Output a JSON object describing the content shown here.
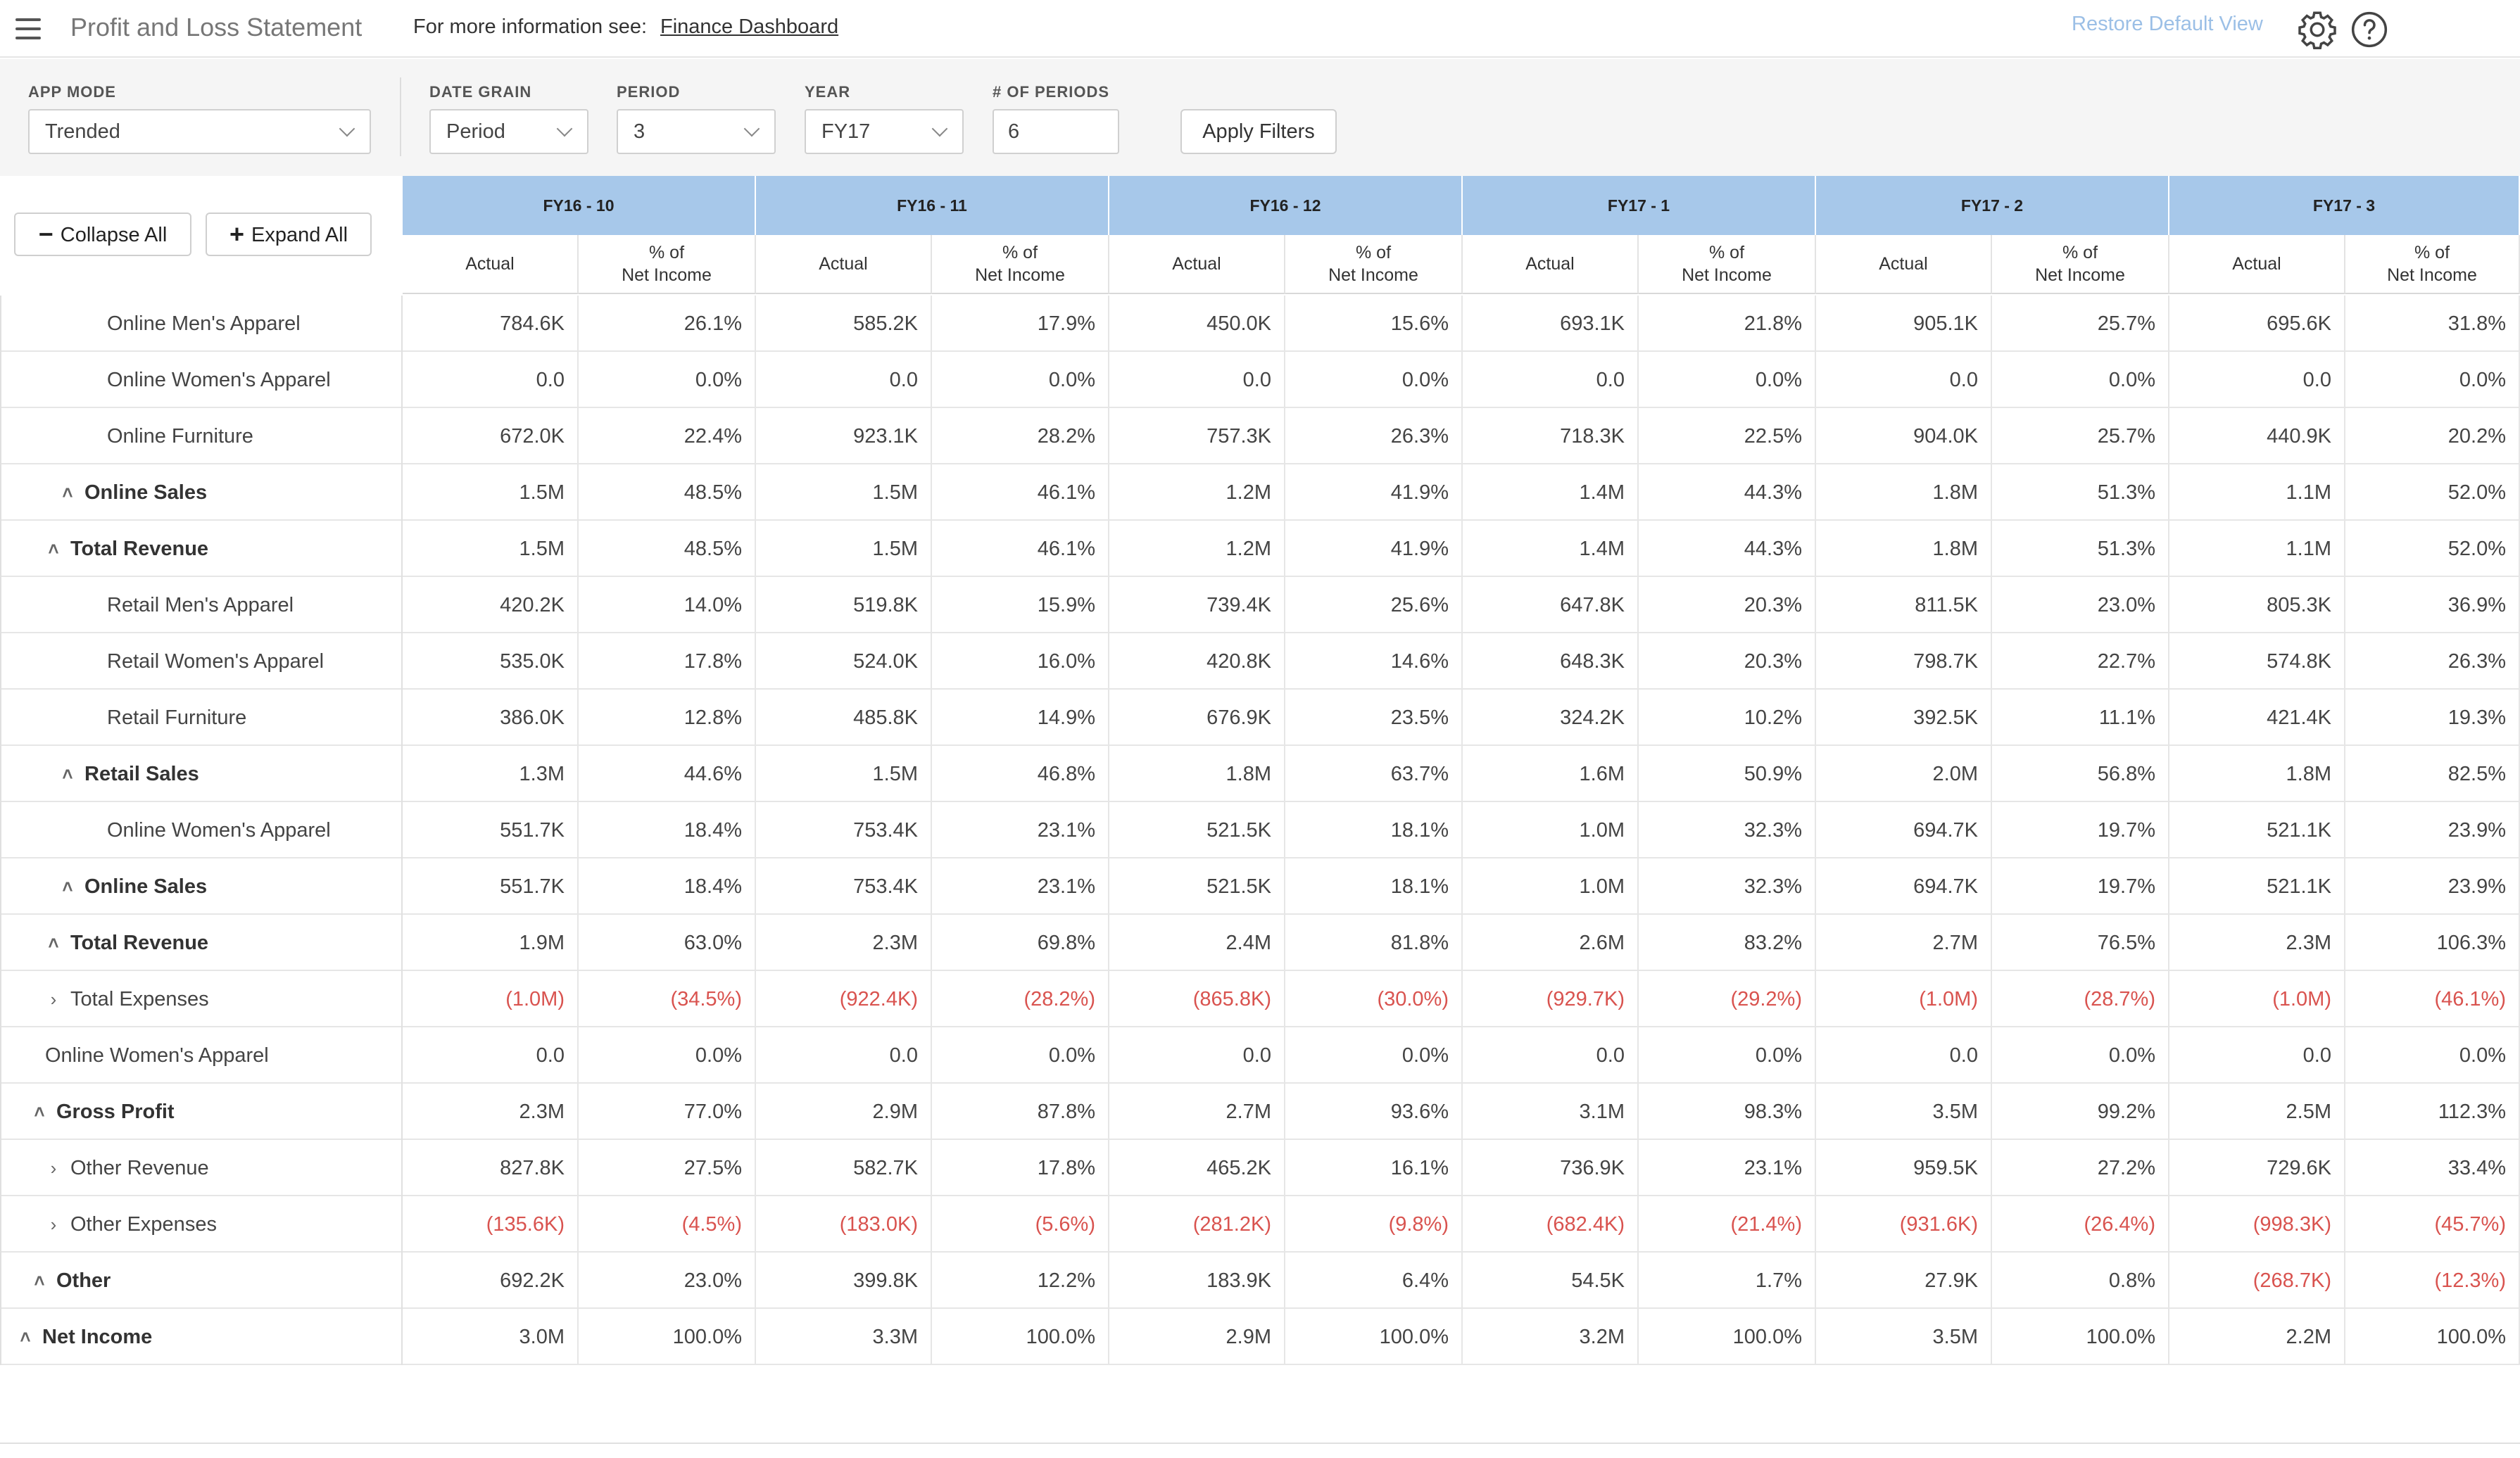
{
  "app": {
    "title": "Profit and Loss Statement",
    "info_text": "For more information see:",
    "info_link": "Finance Dashboard",
    "restore_label": "Restore Default View"
  },
  "filters": {
    "app_mode_label": "APP MODE",
    "app_mode_value": "Trended",
    "date_grain_label": "DATE GRAIN",
    "date_grain_value": "Period",
    "period_label": "PERIOD",
    "period_value": "3",
    "year_label": "YEAR",
    "year_value": "FY17",
    "num_periods_label": "# OF PERIODS",
    "num_periods_value": "6",
    "apply_label": "Apply Filters"
  },
  "toolbar": {
    "collapse_label": "Collapse All",
    "expand_label": "Expand All"
  },
  "columns": {
    "periods": [
      "FY16 - 10",
      "FY16 - 11",
      "FY16 - 12",
      "FY17 - 1",
      "FY17 - 2",
      "FY17 - 3"
    ],
    "actual_label": "Actual",
    "pct_label": "% of\nNet Income"
  },
  "rows": [
    {
      "label": "Online Men's Apparel",
      "level": 3,
      "caret": "",
      "bold": false,
      "values": [
        "784.6K",
        "26.1%",
        "585.2K",
        "17.9%",
        "450.0K",
        "15.6%",
        "693.1K",
        "21.8%",
        "905.1K",
        "25.7%",
        "695.6K",
        "31.8%"
      ]
    },
    {
      "label": "Online Women's Apparel",
      "level": 3,
      "caret": "",
      "bold": false,
      "values": [
        "0.0",
        "0.0%",
        "0.0",
        "0.0%",
        "0.0",
        "0.0%",
        "0.0",
        "0.0%",
        "0.0",
        "0.0%",
        "0.0",
        "0.0%"
      ]
    },
    {
      "label": "Online Furniture",
      "level": 3,
      "caret": "",
      "bold": false,
      "values": [
        "672.0K",
        "22.4%",
        "923.1K",
        "28.2%",
        "757.3K",
        "26.3%",
        "718.3K",
        "22.5%",
        "904.0K",
        "25.7%",
        "440.9K",
        "20.2%"
      ]
    },
    {
      "label": "Online Sales",
      "level": 2,
      "caret": "up",
      "bold": true,
      "values": [
        "1.5M",
        "48.5%",
        "1.5M",
        "46.1%",
        "1.2M",
        "41.9%",
        "1.4M",
        "44.3%",
        "1.8M",
        "51.3%",
        "1.1M",
        "52.0%"
      ]
    },
    {
      "label": "Total Revenue",
      "level": 1,
      "caret": "up",
      "bold": true,
      "values": [
        "1.5M",
        "48.5%",
        "1.5M",
        "46.1%",
        "1.2M",
        "41.9%",
        "1.4M",
        "44.3%",
        "1.8M",
        "51.3%",
        "1.1M",
        "52.0%"
      ]
    },
    {
      "label": "Retail Men's Apparel",
      "level": 3,
      "caret": "",
      "bold": false,
      "values": [
        "420.2K",
        "14.0%",
        "519.8K",
        "15.9%",
        "739.4K",
        "25.6%",
        "647.8K",
        "20.3%",
        "811.5K",
        "23.0%",
        "805.3K",
        "36.9%"
      ]
    },
    {
      "label": "Retail Women's Apparel",
      "level": 3,
      "caret": "",
      "bold": false,
      "values": [
        "535.0K",
        "17.8%",
        "524.0K",
        "16.0%",
        "420.8K",
        "14.6%",
        "648.3K",
        "20.3%",
        "798.7K",
        "22.7%",
        "574.8K",
        "26.3%"
      ]
    },
    {
      "label": "Retail Furniture",
      "level": 3,
      "caret": "",
      "bold": false,
      "values": [
        "386.0K",
        "12.8%",
        "485.8K",
        "14.9%",
        "676.9K",
        "23.5%",
        "324.2K",
        "10.2%",
        "392.5K",
        "11.1%",
        "421.4K",
        "19.3%"
      ]
    },
    {
      "label": "Retail Sales",
      "level": 2,
      "caret": "up",
      "bold": true,
      "values": [
        "1.3M",
        "44.6%",
        "1.5M",
        "46.8%",
        "1.8M",
        "63.7%",
        "1.6M",
        "50.9%",
        "2.0M",
        "56.8%",
        "1.8M",
        "82.5%"
      ]
    },
    {
      "label": "Online Women's Apparel",
      "level": 3,
      "caret": "",
      "bold": false,
      "values": [
        "551.7K",
        "18.4%",
        "753.4K",
        "23.1%",
        "521.5K",
        "18.1%",
        "1.0M",
        "32.3%",
        "694.7K",
        "19.7%",
        "521.1K",
        "23.9%"
      ]
    },
    {
      "label": "Online Sales",
      "level": 2,
      "caret": "up",
      "bold": true,
      "values": [
        "551.7K",
        "18.4%",
        "753.4K",
        "23.1%",
        "521.5K",
        "18.1%",
        "1.0M",
        "32.3%",
        "694.7K",
        "19.7%",
        "521.1K",
        "23.9%"
      ]
    },
    {
      "label": "Total Revenue",
      "level": 1,
      "caret": "up",
      "bold": true,
      "values": [
        "1.9M",
        "63.0%",
        "2.3M",
        "69.8%",
        "2.4M",
        "81.8%",
        "2.6M",
        "83.2%",
        "2.7M",
        "76.5%",
        "2.3M",
        "106.3%"
      ]
    },
    {
      "label": "Total Expenses",
      "level": 1,
      "caret": "right",
      "bold": false,
      "values": [
        "(1.0M)",
        "(34.5%)",
        "(922.4K)",
        "(28.2%)",
        "(865.8K)",
        "(30.0%)",
        "(929.7K)",
        "(29.2%)",
        "(1.0M)",
        "(28.7%)",
        "(1.0M)",
        "(46.1%)"
      ]
    },
    {
      "label": "Online Women's Apparel",
      "level": 1,
      "caret": "",
      "bold": false,
      "values": [
        "0.0",
        "0.0%",
        "0.0",
        "0.0%",
        "0.0",
        "0.0%",
        "0.0",
        "0.0%",
        "0.0",
        "0.0%",
        "0.0",
        "0.0%"
      ]
    },
    {
      "label": "Gross Profit",
      "level": 0.5,
      "caret": "up",
      "bold": true,
      "values": [
        "2.3M",
        "77.0%",
        "2.9M",
        "87.8%",
        "2.7M",
        "93.6%",
        "3.1M",
        "98.3%",
        "3.5M",
        "99.2%",
        "2.5M",
        "112.3%"
      ]
    },
    {
      "label": "Other Revenue",
      "level": 1,
      "caret": "right",
      "bold": false,
      "values": [
        "827.8K",
        "27.5%",
        "582.7K",
        "17.8%",
        "465.2K",
        "16.1%",
        "736.9K",
        "23.1%",
        "959.5K",
        "27.2%",
        "729.6K",
        "33.4%"
      ]
    },
    {
      "label": "Other Expenses",
      "level": 1,
      "caret": "right",
      "bold": false,
      "values": [
        "(135.6K)",
        "(4.5%)",
        "(183.0K)",
        "(5.6%)",
        "(281.2K)",
        "(9.8%)",
        "(682.4K)",
        "(21.4%)",
        "(931.6K)",
        "(26.4%)",
        "(998.3K)",
        "(45.7%)"
      ]
    },
    {
      "label": "Other",
      "level": 0.5,
      "caret": "up",
      "bold": true,
      "values": [
        "692.2K",
        "23.0%",
        "399.8K",
        "12.2%",
        "183.9K",
        "6.4%",
        "54.5K",
        "1.7%",
        "27.9K",
        "0.8%",
        "(268.7K)",
        "(12.3%)"
      ]
    },
    {
      "label": "Net Income",
      "level": 0,
      "caret": "up",
      "bold": true,
      "values": [
        "3.0M",
        "100.0%",
        "3.3M",
        "100.0%",
        "2.9M",
        "100.0%",
        "3.2M",
        "100.0%",
        "3.5M",
        "100.0%",
        "2.2M",
        "100.0%"
      ]
    }
  ]
}
